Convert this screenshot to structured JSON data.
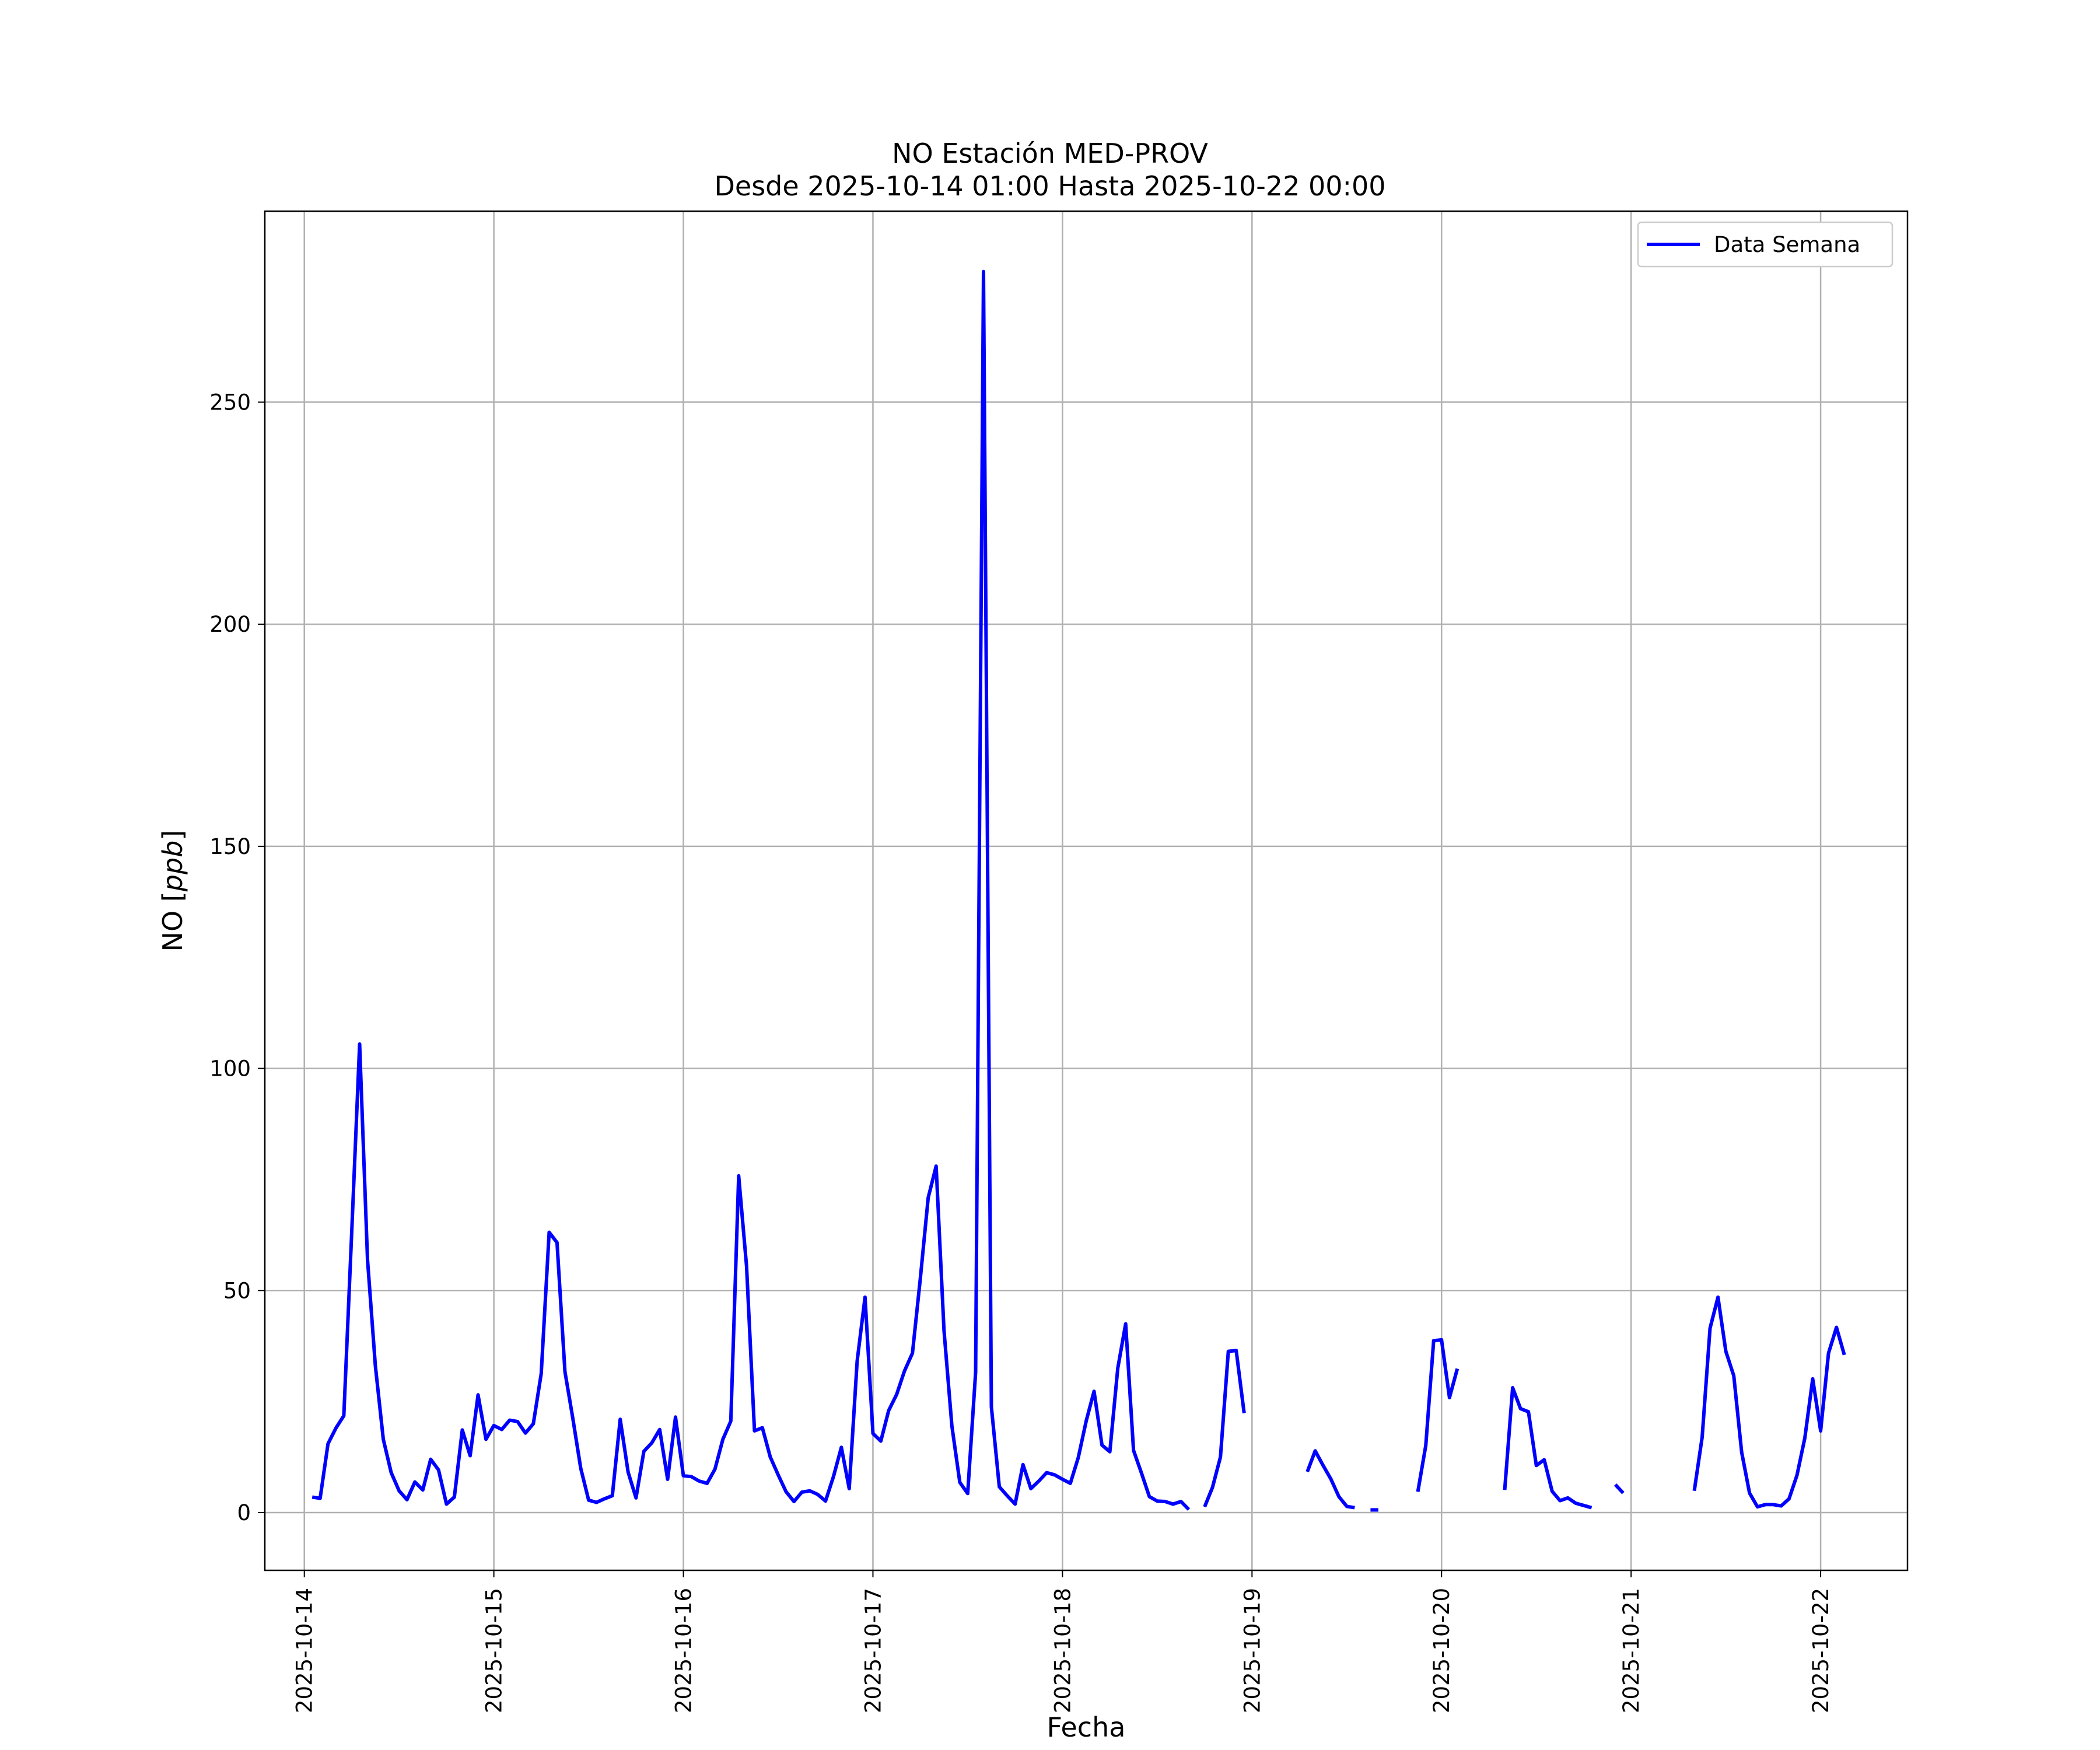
{
  "chart_data": {
    "type": "line",
    "title": "NO Estación MED-PROV",
    "subtitle": "Desde 2025-10-14 01:00 Hasta 2025-10-22 00:00",
    "xlabel": "Fecha",
    "ylabel": "NO [ppb]",
    "ylabel_main": "NO [",
    "ylabel_unit": "ppb",
    "ylabel_close": "]",
    "xlim": [
      "2025-10-13T19:00",
      "2025-10-22T11:00"
    ],
    "ylim": [
      -13,
      293
    ],
    "grid": true,
    "legend_position": "upper right",
    "line_color": "#0000ff",
    "x_ticks": [
      "2025-10-14",
      "2025-10-15",
      "2025-10-16",
      "2025-10-17",
      "2025-10-18",
      "2025-10-19",
      "2025-10-20",
      "2025-10-21",
      "2025-10-22"
    ],
    "y_ticks": [
      0,
      50,
      100,
      150,
      200,
      250
    ],
    "series": [
      {
        "name": "Data Semana",
        "start": "2025-10-14T01:00",
        "step_hours": 1,
        "values": [
          3.5,
          3.2,
          15.5,
          19,
          21.8,
          63,
          105.5,
          57,
          33,
          16.5,
          9,
          4.9,
          2.9,
          6.9,
          5.1,
          12,
          9.6,
          1.9,
          3.5,
          18.6,
          12.8,
          26.5,
          16.5,
          19.6,
          18.7,
          20.8,
          20.5,
          17.9,
          20,
          31.3,
          63.1,
          60.8,
          31.7,
          21.2,
          10,
          2.8,
          2.3,
          3.1,
          3.8,
          21,
          9.1,
          3.3,
          13.8,
          15.7,
          18.7,
          7.5,
          21.5,
          8.3,
          8.1,
          7.1,
          6.6,
          9.8,
          16.5,
          20.6,
          75.8,
          55.5,
          18.4,
          19.1,
          12.5,
          8.5,
          4.7,
          2.5,
          4.6,
          4.9,
          4.1,
          2.6,
          8.1,
          14.7,
          5.4,
          34.1,
          48.5,
          17.8,
          16.1,
          23,
          26.6,
          31.9,
          35.9,
          52.7,
          70.9,
          78,
          41,
          19.5,
          6.8,
          4.3,
          31.6,
          279.4,
          23.8,
          5.8,
          3.8,
          1.9,
          10.8,
          5.4,
          7.1,
          9,
          8.5,
          7.5,
          6.6,
          12.4,
          20.6,
          27.3,
          15.2,
          13.7,
          32.5,
          42.5,
          14,
          8.9,
          3.6,
          2.6,
          2.5,
          1.9,
          2.5,
          0.7,
          null,
          1.3,
          5.7,
          12.5,
          36.3,
          36.5,
          22.4,
          null,
          null,
          null,
          null,
          null,
          null,
          null,
          9.2,
          13.9,
          10.6,
          7.5,
          3.6,
          1.4,
          1.1,
          null,
          0.6,
          0.6,
          null,
          null,
          null,
          null,
          4.7,
          15.1,
          38.7,
          38.9,
          25.9,
          32.4,
          null,
          null,
          null,
          null,
          null,
          5.1,
          28.1,
          23.4,
          22.7,
          10.6,
          11.9,
          4.8,
          2.7,
          3.3,
          2.1,
          1.6,
          1.1,
          null,
          null,
          6.3,
          4.4,
          null,
          null,
          null,
          null,
          null,
          null,
          null,
          null,
          4.9,
          17,
          41.5,
          48.5,
          36.3,
          30.8,
          13.6,
          4.4,
          1.3,
          1.8,
          1.8,
          1.5,
          3.1,
          8.4,
          16.8,
          30.1,
          18.4,
          35.9,
          41.7,
          35.5
        ]
      }
    ]
  }
}
